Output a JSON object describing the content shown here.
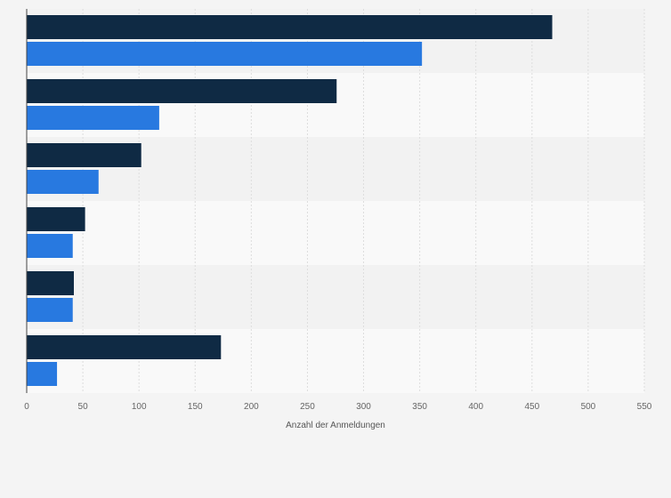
{
  "chart_data": {
    "type": "bar",
    "orientation": "horizontal",
    "categories": [
      "",
      "",
      "",
      "",
      "",
      ""
    ],
    "series": [
      {
        "color": "#0f2a44",
        "values": [
          468,
          276,
          102,
          52,
          42,
          173
        ]
      },
      {
        "color": "#2879e0",
        "values": [
          352,
          118,
          64,
          41,
          41,
          27
        ]
      }
    ],
    "title": "",
    "xlabel": "Anzahl der Anmeldungen",
    "ylabel": "",
    "xlim": [
      0,
      550
    ],
    "xticks": [
      0,
      50,
      100,
      150,
      200,
      250,
      300,
      350,
      400,
      450,
      500,
      550
    ],
    "grid": true,
    "legend": "none"
  },
  "colors": {
    "band_odd": "#f2f2f2",
    "band_even": "#f9f9f9",
    "gridline": "#dddddd",
    "axis": "#444444"
  }
}
